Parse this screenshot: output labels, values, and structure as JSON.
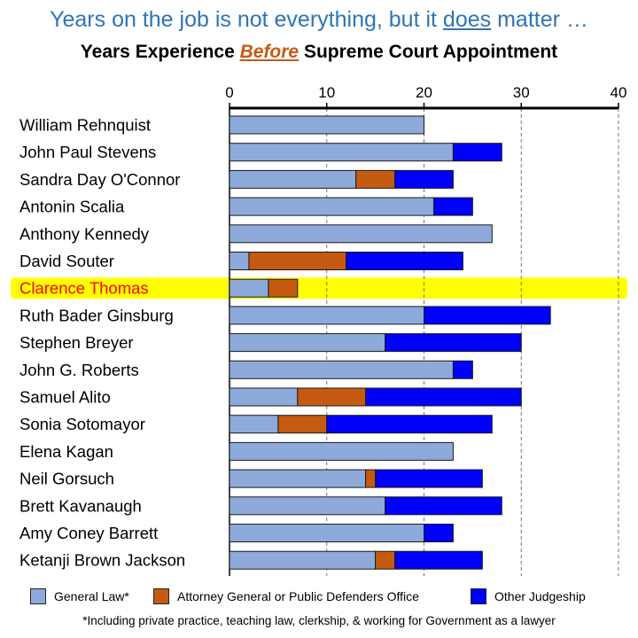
{
  "headline": {
    "before": "Years on the job is not everything, but it ",
    "emphasis": "does",
    "after": " matter …"
  },
  "title": {
    "before": "Years Experience ",
    "emphasis": "Before",
    "after": " Supreme Court Appointment"
  },
  "colors": {
    "headline": "#2e74b5",
    "general_law": "#8eaadb",
    "attorney_general": "#c55a11",
    "other_judgeship": "#0000ff",
    "highlight": "#ffff00",
    "highlight_text": "#ff0000",
    "emphasis_text": "#c55a11"
  },
  "chart_data": {
    "type": "bar",
    "orientation": "horizontal",
    "stacked": true,
    "xlim": [
      0,
      40
    ],
    "x_ticks": [
      "0",
      "10",
      "20",
      "30",
      "40"
    ],
    "grid": "dashed vertical at 10, 20, 30, 40",
    "highlighted_category": "Clarence Thomas",
    "categories": [
      "William Rehnquist",
      "John Paul Stevens",
      "Sandra Day O'Connor",
      "Antonin Scalia",
      "Anthony Kennedy",
      "David Souter",
      "Clarence Thomas",
      "Ruth Bader Ginsburg",
      "Stephen Breyer",
      "John G. Roberts",
      "Samuel Alito",
      "Sonia Sotomayor",
      "Elena Kagan",
      "Neil Gorsuch",
      "Brett Kavanaugh",
      "Amy Coney Barrett",
      "Ketanji Brown Jackson"
    ],
    "series": [
      {
        "name": "General Law*",
        "values": [
          20,
          23,
          13,
          21,
          27,
          2,
          4,
          20,
          16,
          23,
          7,
          5,
          23,
          14,
          16,
          20,
          15
        ]
      },
      {
        "name": "Attorney General or Public Defenders Office",
        "values": [
          0,
          0,
          4,
          0,
          0,
          10,
          3,
          0,
          0,
          0,
          7,
          5,
          0,
          1,
          0,
          0,
          2
        ]
      },
      {
        "name": "Other Judgeship",
        "values": [
          0,
          5,
          6,
          4,
          0,
          12,
          0,
          13,
          14,
          2,
          16,
          17,
          0,
          11,
          12,
          3,
          9
        ]
      }
    ]
  },
  "footnote": "*Including private practice, teaching law, clerkship, & working for Government as a lawyer"
}
